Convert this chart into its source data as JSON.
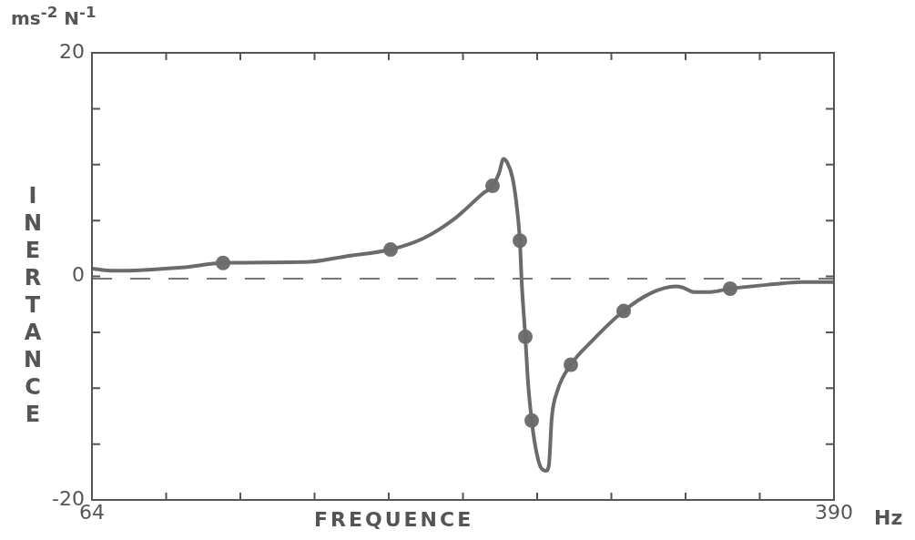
{
  "chart_data": {
    "type": "line",
    "xlabel": "FREQUENCE",
    "ylabel": "INERTANCE",
    "annotations": [
      "ms$^{-2}$ N$^{-1}$",
      "Hz"
    ],
    "xlim": [
      64,
      390
    ],
    "ylim": [
      -20,
      20
    ],
    "xticks": [
      64,
      {
        "value": 96.6,
        "label": null
      },
      {
        "value": 129.2,
        "label": null
      },
      {
        "value": 161.8,
        "label": null
      },
      {
        "value": 194.4,
        "label": null
      },
      {
        "value": 227,
        "label": null
      },
      {
        "value": 259.6,
        "label": null
      },
      {
        "value": 292.2,
        "label": null
      },
      {
        "value": 324.8,
        "label": null
      },
      {
        "value": 357.4,
        "label": null
      },
      390
    ],
    "yticks": [
      -20,
      {
        "value": -15,
        "label": null
      },
      {
        "value": -10,
        "label": null
      },
      {
        "value": -5,
        "label": null
      },
      0,
      {
        "value": 5,
        "label": null
      },
      {
        "value": 10,
        "label": null
      },
      {
        "value": 15,
        "label": null
      },
      20
    ],
    "grid": false,
    "legend": false,
    "ref_lines": [
      {
        "axis": "y",
        "value": -0.2,
        "color": "#777777",
        "line_style": "dashed"
      }
    ],
    "series": [
      {
        "type": "line",
        "color": "#6b6b6b",
        "marker": "none",
        "x": [
          64.4,
          73.6,
          103.6,
          121.6,
          159.6,
          175.6,
          195.2,
          209.6,
          223.6,
          235.6,
          240,
          242.8,
          244.8,
          246.4,
          248.8,
          250.8,
          252,
          252.8,
          254.4,
          255.6,
          257.2,
          258.8,
          261.2,
          263.6,
          264.8,
          266,
          268.4,
          274.4,
          283.6,
          297.6,
          309.6,
          320.4,
          323.6,
          328.4,
          335.6,
          344.4,
          363.6,
          375.6,
          389.6
        ],
        "values": [
          0.7,
          0.5,
          0.8,
          1.2,
          1.3,
          1.8,
          2.4,
          3.4,
          5.2,
          7.4,
          8.1,
          9.2,
          10.5,
          10.2,
          8.8,
          6.0,
          3.2,
          -0.5,
          -5.4,
          -9.5,
          -12.9,
          -15.2,
          -17.1,
          -17.4,
          -16.8,
          -12.7,
          -10.3,
          -7.9,
          -5.8,
          -3.1,
          -1.5,
          -0.9,
          -1.0,
          -1.4,
          -1.4,
          -1.1,
          -0.7,
          -0.5,
          -0.5
        ]
      },
      {
        "type": "scatter",
        "color": "#707070",
        "marker": "circle",
        "x": [
          121.6,
          195.2,
          240,
          252,
          254.4,
          257.2,
          274.4,
          297.6,
          344.4
        ],
        "values": [
          1.2,
          2.4,
          8.1,
          3.2,
          -5.4,
          -12.9,
          -7.9,
          -3.1,
          -1.1
        ]
      }
    ]
  }
}
